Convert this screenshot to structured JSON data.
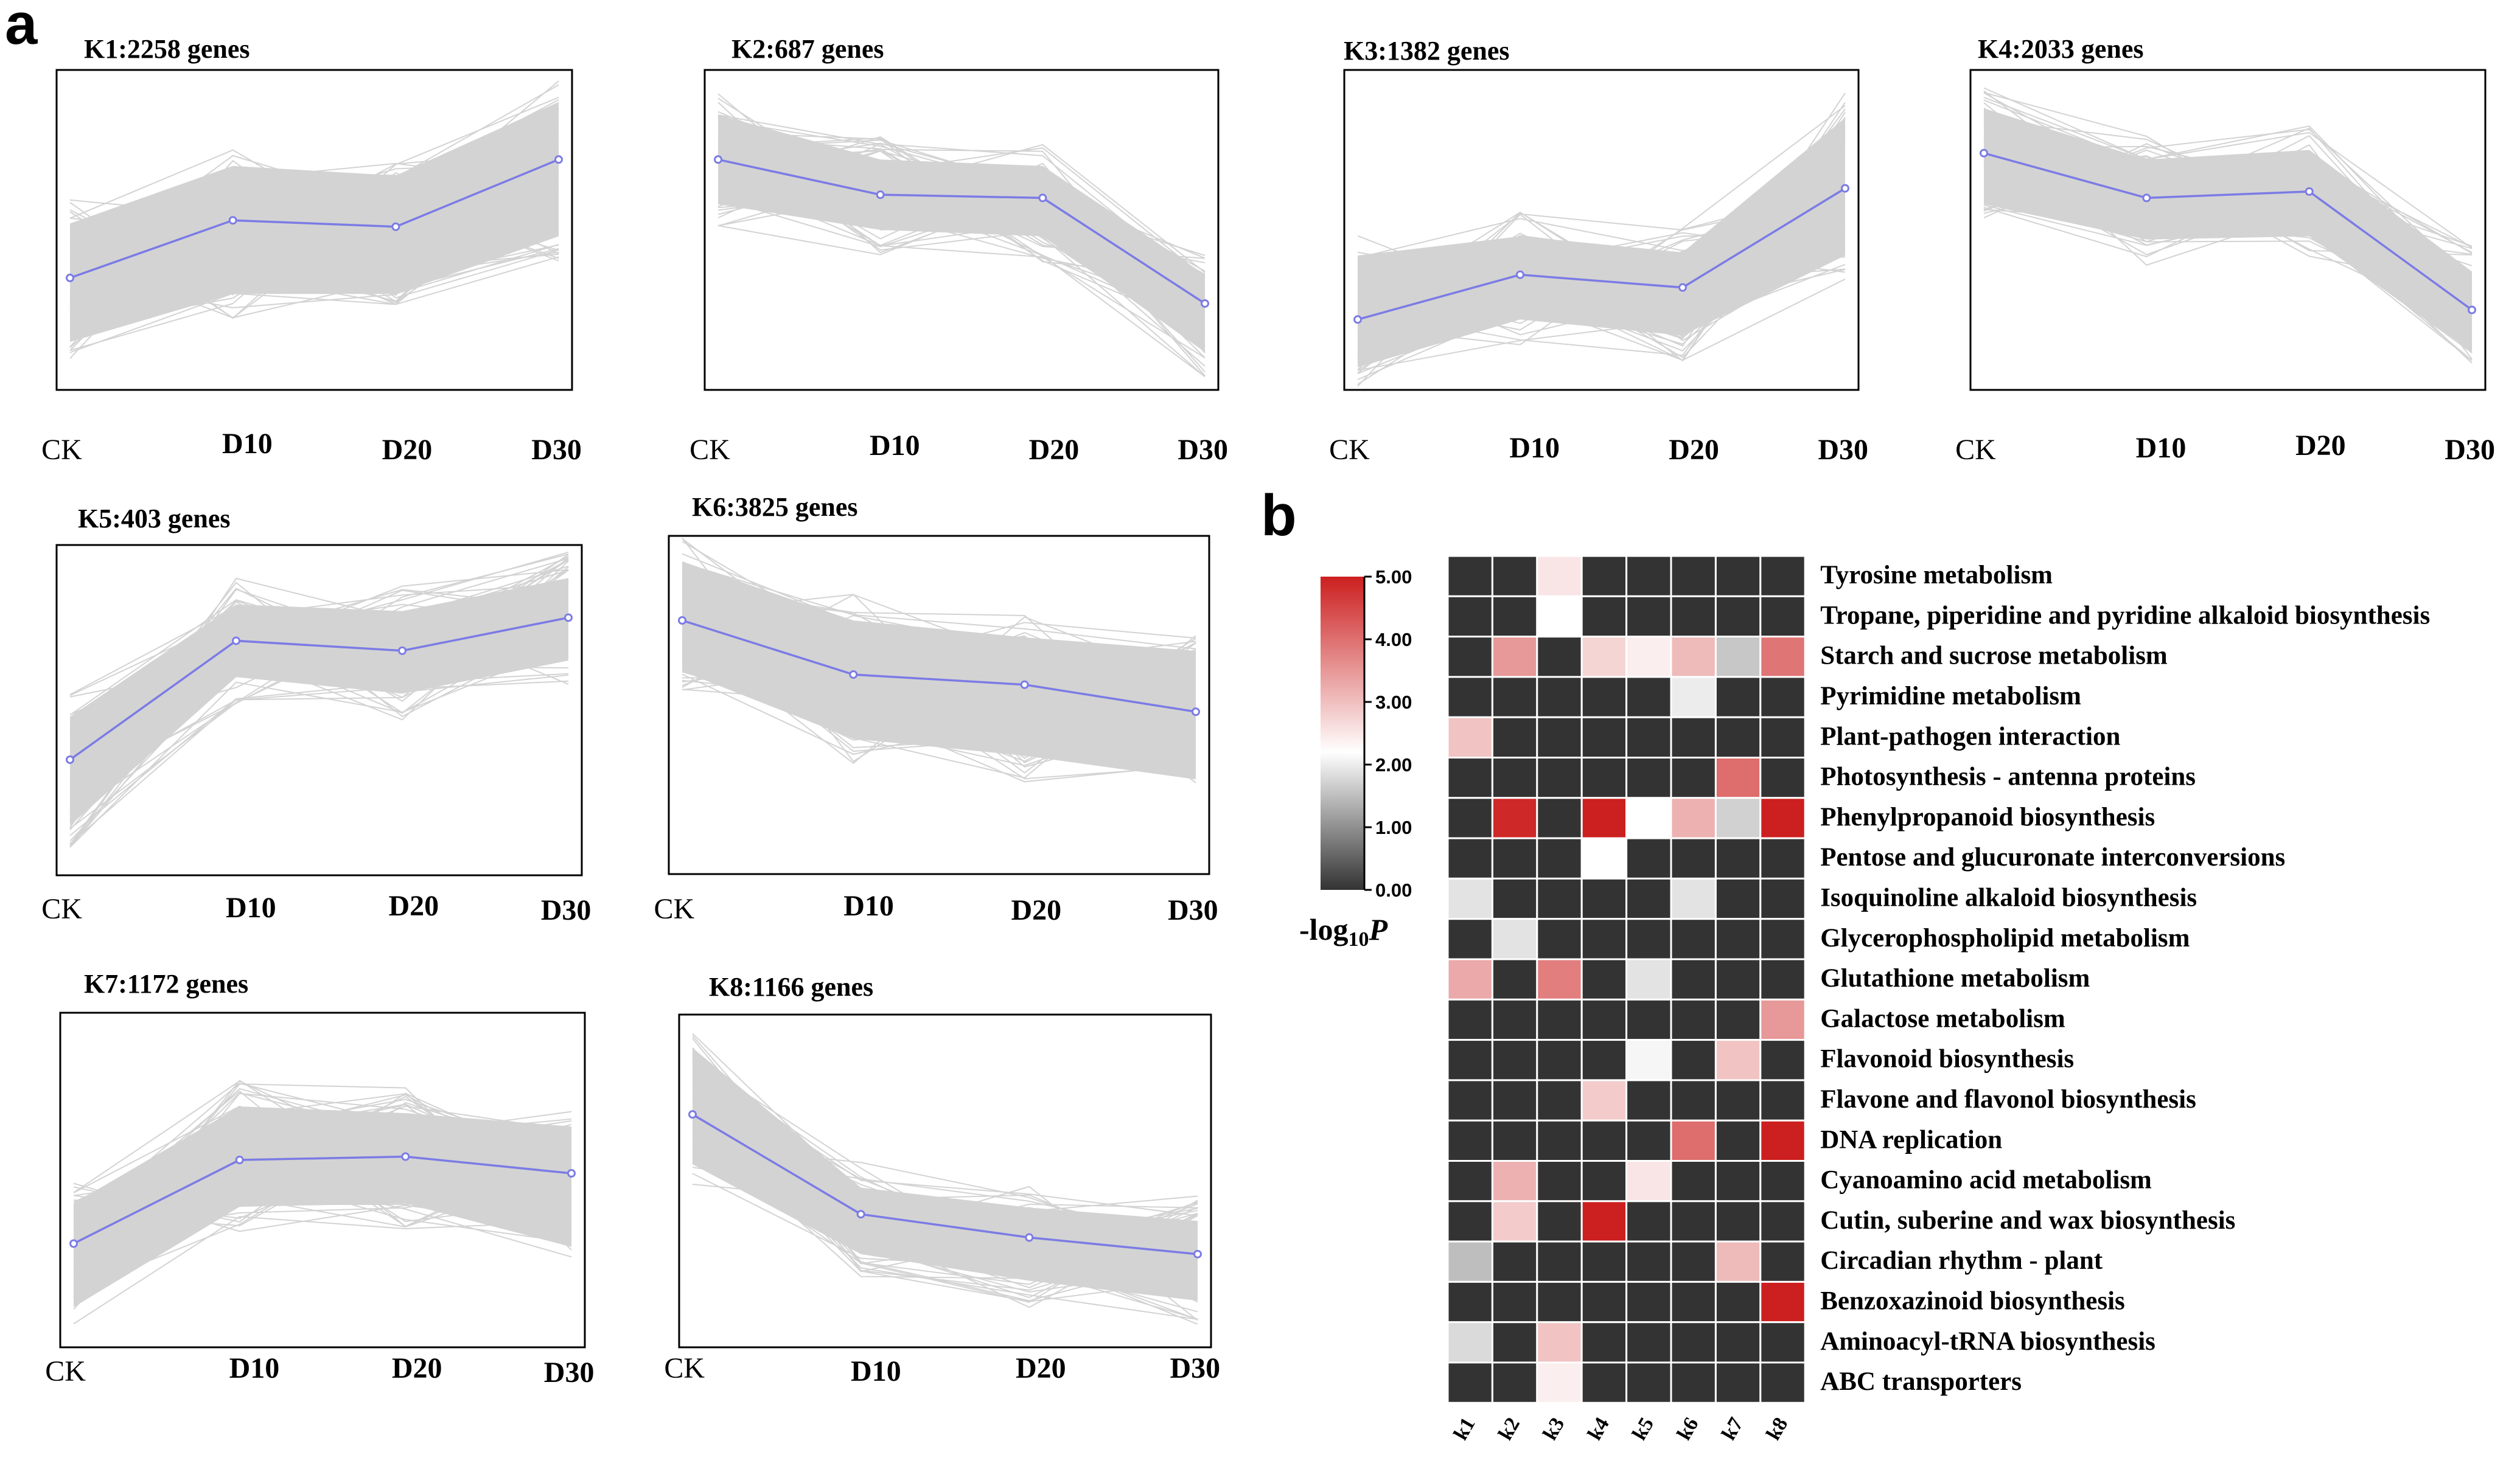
{
  "panel_a_label": "a",
  "panel_b_label": "b",
  "chart_data": [
    {
      "type": "line",
      "subtype": "cluster-expression-profiles",
      "x": [
        "CK",
        "D10",
        "D20",
        "D30"
      ],
      "clusters": [
        {
          "id": "K1",
          "title": "K1:2258 genes",
          "genes": 2258,
          "mean": [
            0.35,
            0.53,
            0.51,
            0.72
          ],
          "band_lo": [
            0.15,
            0.3,
            0.3,
            0.48
          ],
          "band_hi": [
            0.52,
            0.7,
            0.67,
            0.9
          ]
        },
        {
          "id": "K2",
          "title": "K2:687 genes",
          "genes": 687,
          "mean": [
            0.72,
            0.61,
            0.6,
            0.27
          ],
          "band_lo": [
            0.58,
            0.5,
            0.48,
            0.12
          ],
          "band_hi": [
            0.86,
            0.72,
            0.7,
            0.36
          ]
        },
        {
          "id": "K3",
          "title": "K3:1382 genes",
          "genes": 1382,
          "mean": [
            0.22,
            0.36,
            0.32,
            0.63
          ],
          "band_lo": [
            0.07,
            0.22,
            0.17,
            0.42
          ],
          "band_hi": [
            0.42,
            0.48,
            0.43,
            0.85
          ]
        },
        {
          "id": "K4",
          "title": "K4:2033 genes",
          "genes": 2033,
          "mean": [
            0.74,
            0.6,
            0.62,
            0.25
          ],
          "band_lo": [
            0.58,
            0.47,
            0.48,
            0.12
          ],
          "band_hi": [
            0.88,
            0.72,
            0.75,
            0.37
          ]
        },
        {
          "id": "K5",
          "title": "K5:403 genes",
          "genes": 403,
          "mean": [
            0.35,
            0.71,
            0.68,
            0.78
          ],
          "band_lo": [
            0.15,
            0.6,
            0.55,
            0.65
          ],
          "band_hi": [
            0.48,
            0.82,
            0.8,
            0.9
          ]
        },
        {
          "id": "K6",
          "title": "K6:3825 genes",
          "genes": 3825,
          "mean": [
            0.75,
            0.59,
            0.56,
            0.48
          ],
          "band_lo": [
            0.6,
            0.4,
            0.35,
            0.28
          ],
          "band_hi": [
            0.92,
            0.75,
            0.7,
            0.66
          ]
        },
        {
          "id": "K7",
          "title": "K7:1172 genes",
          "genes": 1172,
          "mean": [
            0.31,
            0.56,
            0.57,
            0.52
          ],
          "band_lo": [
            0.12,
            0.42,
            0.43,
            0.3
          ],
          "band_hi": [
            0.43,
            0.72,
            0.7,
            0.66
          ]
        },
        {
          "id": "K8",
          "title": "K8:1166 genes",
          "genes": 1166,
          "mean": [
            0.7,
            0.4,
            0.33,
            0.28
          ],
          "band_lo": [
            0.55,
            0.28,
            0.2,
            0.14
          ],
          "band_hi": [
            0.9,
            0.48,
            0.42,
            0.38
          ]
        }
      ]
    },
    {
      "type": "heatmap",
      "columns": [
        "k1",
        "k2",
        "k3",
        "k4",
        "k5",
        "k6",
        "k7",
        "k8"
      ],
      "rows": [
        "Tyrosine metabolism",
        "Tropane, piperidine and pyridine alkaloid biosynthesis",
        "Starch and sucrose metabolism",
        "Pyrimidine metabolism",
        "Plant-pathogen interaction",
        "Photosynthesis - antenna proteins",
        "Phenylpropanoid biosynthesis",
        "Pentose and glucuronate interconversions",
        "Isoquinoline alkaloid biosynthesis",
        "Glycerophospholipid metabolism",
        "Glutathione metabolism",
        "Galactose metabolism",
        "Flavonoid biosynthesis",
        "Flavone and flavonol biosynthesis",
        "DNA replication",
        "Cyanoamino acid metabolism",
        "Cutin, suberine and wax biosynthesis",
        "Circadian rhythm - plant",
        "Benzoxazinoid biosynthesis",
        "Aminoacyl-tRNA biosynthesis",
        "ABC transporters"
      ],
      "values": [
        [
          0,
          0,
          2.5,
          0,
          0,
          0,
          0,
          0
        ],
        [
          0,
          0,
          2.2,
          0,
          0,
          0,
          0,
          0
        ],
        [
          0,
          3.4,
          0,
          2.7,
          2.4,
          3.0,
          1.6,
          3.8
        ],
        [
          0,
          0,
          0,
          0,
          0,
          2.0,
          0,
          0
        ],
        [
          2.9,
          0,
          0,
          0,
          0,
          0,
          0,
          0
        ],
        [
          0,
          0,
          0,
          0,
          0,
          0,
          3.9,
          0
        ],
        [
          0,
          4.7,
          0,
          4.8,
          2.2,
          3.1,
          1.7,
          4.8
        ],
        [
          0,
          0,
          0,
          2.2,
          0,
          0,
          0,
          0
        ],
        [
          1.9,
          0,
          0,
          0,
          0,
          1.9,
          0,
          0
        ],
        [
          0,
          1.9,
          0,
          0,
          0,
          0,
          0,
          0
        ],
        [
          3.2,
          0,
          3.7,
          0,
          1.9,
          0,
          0,
          0
        ],
        [
          0,
          0,
          0,
          0,
          0,
          0,
          0,
          3.4
        ],
        [
          0,
          0,
          0,
          0,
          2.1,
          0,
          2.9,
          0
        ],
        [
          0,
          0,
          0,
          2.8,
          0,
          0,
          0,
          0
        ],
        [
          0,
          0,
          0,
          0,
          0,
          3.9,
          0,
          4.8
        ],
        [
          0,
          3.1,
          0,
          0,
          2.5,
          0,
          0,
          0
        ],
        [
          0,
          2.8,
          0,
          4.8,
          0,
          0,
          0,
          0
        ],
        [
          1.5,
          0,
          0,
          0,
          0,
          0,
          3.0,
          0
        ],
        [
          0,
          0,
          0,
          0,
          0,
          0,
          0,
          4.8
        ],
        [
          1.8,
          0,
          2.9,
          0,
          0,
          0,
          0,
          0
        ],
        [
          0,
          0,
          2.4,
          0,
          0,
          0,
          0,
          0
        ]
      ],
      "colorbar": {
        "ticks": [
          "5.00",
          "4.00",
          "3.00",
          "2.00",
          "1.00",
          "0.00"
        ],
        "range": [
          0,
          5
        ],
        "label_main": "-log",
        "label_sub": "10",
        "label_var": "P",
        "colors": [
          "#333333",
          "#ffffff",
          "#cc1f1f"
        ]
      }
    }
  ],
  "colors": {
    "background_line": "#d3d3d3",
    "mean_line": "#7b7be6"
  }
}
